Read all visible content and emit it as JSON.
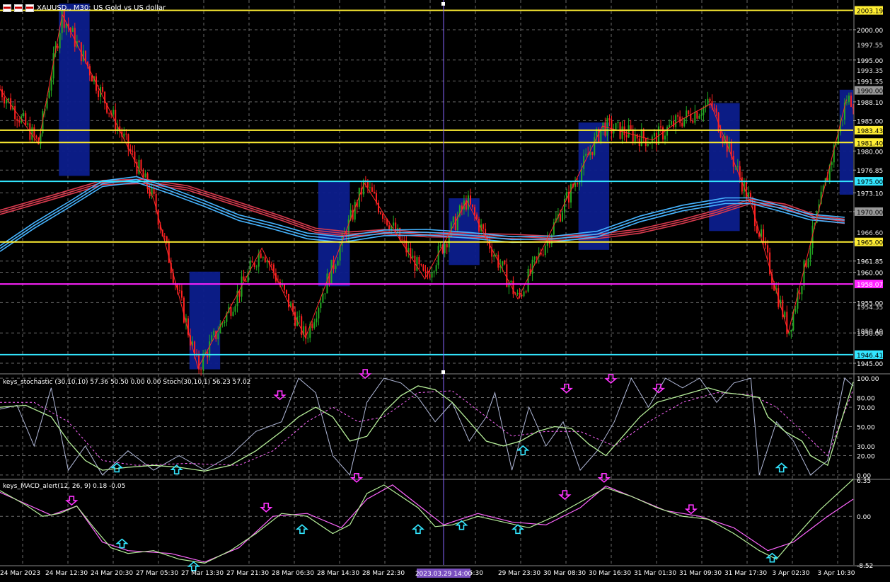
{
  "symbol_header": {
    "text": "XAUUSD., M30:  US Gold vs US dollar"
  },
  "indicators": {
    "stoch_title": "keys_stochastic (30,10,10) 57.36 50.50 0.00 0.00 Stoch(30,10,1) 56.23 57.02",
    "macd_title": "keys_MACD_alert(12, 26, 9) 0.18 -0.05"
  },
  "colors": {
    "background": "#000000",
    "grid": "#6a6a6a",
    "bull": "#22aa22",
    "bear": "#ff2020",
    "zigzag": "#ff2a2a",
    "box": "#0c1d8c",
    "ma_red": "#d83a4e",
    "ma_blue": "#46b4ff",
    "yellow_line": "#ffee33",
    "cyan_line": "#33e6ff",
    "magenta_line": "#ff22ff",
    "crosshair": "#8866ff",
    "stoch_main": "#b0b8d8",
    "stoch_signal": "#b7f09a",
    "stoch_dash": "#ff66ff",
    "macd_line": "#b7f09a",
    "macd_signal": "#ff66ff",
    "arrow_down": "#ff33ff",
    "arrow_up": "#33e6ff"
  },
  "chart_data": [
    {
      "type": "candlestick",
      "title": "XAUUSD., M30:  US Gold vs US dollar",
      "ylim": [
        1943.6,
        2004.9
      ],
      "price_ticks": [
        "2000.00",
        "1995.00",
        "1991.55",
        "1988.10",
        "1985.00",
        "1980.00",
        "1976.85",
        "1973.10",
        "1970.00",
        "1965.00",
        "1961.85",
        "1960.00",
        "1955.00",
        "1950.00",
        "1945.00"
      ],
      "hidden_ticks": [
        "1997.55",
        "1993.35",
        "1983.25",
        "1966.60",
        "1954.35",
        "1950.40"
      ],
      "price_labels": [
        {
          "text": "2003.19",
          "value": 2003.19,
          "kind": "yellow"
        },
        {
          "text": "1983.43",
          "value": 1983.43,
          "kind": "yellow"
        },
        {
          "text": "1981.40",
          "value": 1981.4,
          "kind": "yellow"
        },
        {
          "text": "1975.00",
          "value": 1975.0,
          "kind": "cyan"
        },
        {
          "text": "1965.00",
          "value": 1965.0,
          "kind": "yellow"
        },
        {
          "text": "1958.07",
          "value": 1958.07,
          "kind": "magenta"
        },
        {
          "text": "1946.41",
          "value": 1946.41,
          "kind": "cyan"
        },
        {
          "text": "1990.00",
          "value": 1990.0,
          "kind": "gray"
        },
        {
          "text": "1970.00",
          "value": 1970.0,
          "kind": "gray"
        }
      ],
      "time_labels": [
        "24 Mar 2023",
        "24 Mar 12:30",
        "24 Mar 20:30",
        "27 Mar 05:30",
        "27 Mar 13:30",
        "27 Mar 21:30",
        "28 Mar 06:30",
        "28 Mar 14:30",
        "28 Mar 22:30",
        "29",
        "15:30",
        "29 Mar 23:30",
        "30 Mar 08:30",
        "30 Mar 16:30",
        "31 Mar 01:30",
        "31 Mar 09:30",
        "31 Mar 17:30",
        "3 Apr 02:30",
        "3 Apr 10:30"
      ],
      "crosshair_time": "2023.03.29 14:00",
      "zigzag": [
        {
          "t": 0.0,
          "p": 1990.2
        },
        {
          "t": 0.045,
          "p": 1981.2
        },
        {
          "t": 0.073,
          "p": 2002.5
        },
        {
          "t": 0.18,
          "p": 1972.1
        },
        {
          "t": 0.232,
          "p": 1944.2
        },
        {
          "t": 0.307,
          "p": 1964.0
        },
        {
          "t": 0.358,
          "p": 1949.2
        },
        {
          "t": 0.427,
          "p": 1974.7
        },
        {
          "t": 0.498,
          "p": 1958.9
        },
        {
          "t": 0.547,
          "p": 1971.8
        },
        {
          "t": 0.607,
          "p": 1955.6
        },
        {
          "t": 0.706,
          "p": 1984.1
        },
        {
          "t": 0.765,
          "p": 1981.8
        },
        {
          "t": 0.795,
          "p": 1984.9
        },
        {
          "t": 0.833,
          "p": 1987.8
        },
        {
          "t": 0.882,
          "p": 1970.5
        },
        {
          "t": 0.924,
          "p": 1950.1
        },
        {
          "t": 0.992,
          "p": 1988.5
        }
      ],
      "boxes": [
        {
          "t1": 0.069,
          "t2": 0.105,
          "p1": 2004.3,
          "p2": 1975.9
        },
        {
          "t1": 0.222,
          "t2": 0.258,
          "p1": 1960.1,
          "p2": 1944.0
        },
        {
          "t1": 0.373,
          "t2": 0.41,
          "p1": 1974.9,
          "p2": 1957.7
        },
        {
          "t1": 0.526,
          "t2": 0.562,
          "p1": 1972.2,
          "p2": 1961.2
        },
        {
          "t1": 0.678,
          "t2": 0.714,
          "p1": 1984.7,
          "p2": 1963.7
        },
        {
          "t1": 0.831,
          "t2": 0.867,
          "p1": 1987.9,
          "p2": 1966.8
        },
        {
          "t1": 0.984,
          "t2": 1.0,
          "p1": 1990.1,
          "p2": 1972.8
        }
      ],
      "ma_red_path": [
        [
          0.0,
          1969.9
        ],
        [
          0.06,
          1972.3
        ],
        [
          0.12,
          1974.8
        ],
        [
          0.17,
          1975.0
        ],
        [
          0.22,
          1973.9
        ],
        [
          0.28,
          1971.2
        ],
        [
          0.33,
          1968.9
        ],
        [
          0.37,
          1966.9
        ],
        [
          0.41,
          1966.3
        ],
        [
          0.45,
          1966.7
        ],
        [
          0.5,
          1966.2
        ],
        [
          0.55,
          1966.1
        ],
        [
          0.6,
          1965.9
        ],
        [
          0.65,
          1965.6
        ],
        [
          0.7,
          1965.9
        ],
        [
          0.75,
          1966.8
        ],
        [
          0.8,
          1968.4
        ],
        [
          0.84,
          1969.9
        ],
        [
          0.88,
          1971.7
        ],
        [
          0.92,
          1970.9
        ],
        [
          0.96,
          1968.9
        ],
        [
          0.99,
          1968.4
        ]
      ],
      "ma_blue_path": [
        [
          0.0,
          1963.9
        ],
        [
          0.04,
          1967.7
        ],
        [
          0.08,
          1971.1
        ],
        [
          0.12,
          1974.6
        ],
        [
          0.16,
          1975.3
        ],
        [
          0.2,
          1973.4
        ],
        [
          0.24,
          1971.3
        ],
        [
          0.28,
          1969.0
        ],
        [
          0.32,
          1967.6
        ],
        [
          0.36,
          1966.0
        ],
        [
          0.4,
          1965.4
        ],
        [
          0.45,
          1966.5
        ],
        [
          0.5,
          1966.6
        ],
        [
          0.55,
          1966.1
        ],
        [
          0.6,
          1965.4
        ],
        [
          0.65,
          1965.5
        ],
        [
          0.7,
          1966.3
        ],
        [
          0.75,
          1968.8
        ],
        [
          0.8,
          1970.6
        ],
        [
          0.85,
          1971.8
        ],
        [
          0.88,
          1971.8
        ],
        [
          0.91,
          1970.7
        ],
        [
          0.95,
          1969.1
        ],
        [
          0.99,
          1968.6
        ]
      ]
    },
    {
      "type": "line",
      "title": "keys_stochastic (30,10,10) 57.36 50.50 0.00 0.00 Stoch(30,10,1) 56.23 57.02",
      "ylim": [
        -3,
        103
      ],
      "ticks": [
        "100.00",
        "80.00",
        "70.00",
        "50.00",
        "30.00",
        "20.00",
        "0.00"
      ],
      "signal_path": [
        [
          0.0,
          70
        ],
        [
          0.03,
          72
        ],
        [
          0.06,
          60
        ],
        [
          0.08,
          35
        ],
        [
          0.1,
          15
        ],
        [
          0.12,
          5
        ],
        [
          0.15,
          8
        ],
        [
          0.18,
          10
        ],
        [
          0.21,
          8
        ],
        [
          0.24,
          4
        ],
        [
          0.27,
          10
        ],
        [
          0.3,
          25
        ],
        [
          0.33,
          45
        ],
        [
          0.35,
          60
        ],
        [
          0.37,
          70
        ],
        [
          0.39,
          60
        ],
        [
          0.41,
          35
        ],
        [
          0.43,
          40
        ],
        [
          0.45,
          65
        ],
        [
          0.47,
          82
        ],
        [
          0.49,
          92
        ],
        [
          0.51,
          88
        ],
        [
          0.53,
          75
        ],
        [
          0.55,
          55
        ],
        [
          0.57,
          35
        ],
        [
          0.59,
          30
        ],
        [
          0.61,
          35
        ],
        [
          0.63,
          45
        ],
        [
          0.65,
          50
        ],
        [
          0.67,
          48
        ],
        [
          0.69,
          32
        ],
        [
          0.71,
          20
        ],
        [
          0.73,
          40
        ],
        [
          0.75,
          60
        ],
        [
          0.77,
          75
        ],
        [
          0.79,
          80
        ],
        [
          0.81,
          85
        ],
        [
          0.83,
          90
        ],
        [
          0.85,
          85
        ],
        [
          0.87,
          83
        ],
        [
          0.89,
          80
        ],
        [
          0.9,
          60
        ],
        [
          0.92,
          45
        ],
        [
          0.94,
          35
        ],
        [
          0.95,
          20
        ],
        [
          0.97,
          10
        ],
        [
          1.0,
          96
        ]
      ],
      "dash_path": [
        [
          0.0,
          75
        ],
        [
          0.04,
          75
        ],
        [
          0.08,
          55
        ],
        [
          0.12,
          15
        ],
        [
          0.16,
          10
        ],
        [
          0.22,
          12
        ],
        [
          0.28,
          10
        ],
        [
          0.32,
          25
        ],
        [
          0.36,
          55
        ],
        [
          0.39,
          70
        ],
        [
          0.42,
          55
        ],
        [
          0.45,
          60
        ],
        [
          0.49,
          85
        ],
        [
          0.53,
          87
        ],
        [
          0.57,
          60
        ],
        [
          0.6,
          40
        ],
        [
          0.64,
          45
        ],
        [
          0.68,
          45
        ],
        [
          0.72,
          30
        ],
        [
          0.76,
          55
        ],
        [
          0.8,
          75
        ],
        [
          0.84,
          85
        ],
        [
          0.88,
          83
        ],
        [
          0.91,
          70
        ],
        [
          0.94,
          45
        ],
        [
          0.97,
          20
        ],
        [
          1.0,
          88
        ]
      ],
      "main_path": [
        [
          0.0,
          68
        ],
        [
          0.02,
          72
        ],
        [
          0.04,
          30
        ],
        [
          0.06,
          90
        ],
        [
          0.08,
          5
        ],
        [
          0.1,
          30
        ],
        [
          0.12,
          0
        ],
        [
          0.15,
          25
        ],
        [
          0.18,
          5
        ],
        [
          0.21,
          20
        ],
        [
          0.24,
          5
        ],
        [
          0.27,
          20
        ],
        [
          0.3,
          45
        ],
        [
          0.33,
          55
        ],
        [
          0.35,
          100
        ],
        [
          0.37,
          85
        ],
        [
          0.39,
          20
        ],
        [
          0.41,
          0
        ],
        [
          0.43,
          75
        ],
        [
          0.45,
          100
        ],
        [
          0.47,
          95
        ],
        [
          0.49,
          80
        ],
        [
          0.51,
          55
        ],
        [
          0.53,
          75
        ],
        [
          0.55,
          35
        ],
        [
          0.57,
          60
        ],
        [
          0.58,
          85
        ],
        [
          0.6,
          5
        ],
        [
          0.62,
          70
        ],
        [
          0.64,
          30
        ],
        [
          0.66,
          55
        ],
        [
          0.68,
          5
        ],
        [
          0.7,
          25
        ],
        [
          0.72,
          55
        ],
        [
          0.74,
          100
        ],
        [
          0.76,
          70
        ],
        [
          0.78,
          100
        ],
        [
          0.8,
          90
        ],
        [
          0.82,
          100
        ],
        [
          0.84,
          75
        ],
        [
          0.86,
          95
        ],
        [
          0.88,
          100
        ],
        [
          0.89,
          0
        ],
        [
          0.91,
          55
        ],
        [
          0.93,
          35
        ],
        [
          0.95,
          0
        ],
        [
          0.97,
          15
        ],
        [
          0.99,
          100
        ],
        [
          1.0,
          92
        ]
      ],
      "arrows_down": [
        [
          0.428,
          100
        ],
        [
          0.328,
          78
        ],
        [
          0.664,
          85
        ],
        [
          0.716,
          95
        ],
        [
          0.772,
          85
        ]
      ],
      "arrows_up": [
        [
          0.137,
          12
        ],
        [
          0.207,
          10
        ],
        [
          0.613,
          30
        ],
        [
          0.916,
          12
        ]
      ]
    },
    {
      "type": "line",
      "title": "keys_MACD_alert(12, 26, 9) 0.18 -0.05",
      "ylim": [
        -8.52,
        6.35
      ],
      "ticks": [
        "6.35",
        "0.00",
        "-8.52"
      ],
      "macd_path": [
        [
          0.0,
          4.5
        ],
        [
          0.03,
          2.0
        ],
        [
          0.05,
          0.0
        ],
        [
          0.07,
          0.5
        ],
        [
          0.09,
          1.8
        ],
        [
          0.11,
          -2.0
        ],
        [
          0.13,
          -5.5
        ],
        [
          0.15,
          -6.5
        ],
        [
          0.18,
          -6.0
        ],
        [
          0.21,
          -7.5
        ],
        [
          0.24,
          -8.2
        ],
        [
          0.27,
          -6.0
        ],
        [
          0.3,
          -3.0
        ],
        [
          0.33,
          0.5
        ],
        [
          0.36,
          0.0
        ],
        [
          0.39,
          -3.0
        ],
        [
          0.41,
          -1.5
        ],
        [
          0.43,
          4.0
        ],
        [
          0.45,
          5.5
        ],
        [
          0.47,
          3.5
        ],
        [
          0.49,
          1.5
        ],
        [
          0.51,
          -1.8
        ],
        [
          0.53,
          -1.5
        ],
        [
          0.56,
          0.0
        ],
        [
          0.59,
          -1.0
        ],
        [
          0.62,
          -2.0
        ],
        [
          0.65,
          0.0
        ],
        [
          0.68,
          2.5
        ],
        [
          0.71,
          5.0
        ],
        [
          0.74,
          3.5
        ],
        [
          0.77,
          1.5
        ],
        [
          0.8,
          0.0
        ],
        [
          0.83,
          -0.5
        ],
        [
          0.86,
          -3.0
        ],
        [
          0.89,
          -6.0
        ],
        [
          0.91,
          -7.5
        ],
        [
          0.93,
          -4.0
        ],
        [
          0.96,
          1.0
        ],
        [
          1.0,
          6.5
        ]
      ],
      "signal_path": [
        [
          0.0,
          4.2
        ],
        [
          0.03,
          2.2
        ],
        [
          0.06,
          0.2
        ],
        [
          0.09,
          1.8
        ],
        [
          0.12,
          -4.5
        ],
        [
          0.15,
          -6.0
        ],
        [
          0.2,
          -6.5
        ],
        [
          0.24,
          -8.0
        ],
        [
          0.28,
          -5.5
        ],
        [
          0.32,
          0.0
        ],
        [
          0.36,
          0.5
        ],
        [
          0.4,
          -2.0
        ],
        [
          0.43,
          3.0
        ],
        [
          0.46,
          5.5
        ],
        [
          0.49,
          2.0
        ],
        [
          0.52,
          -1.5
        ],
        [
          0.56,
          0.5
        ],
        [
          0.6,
          -1.0
        ],
        [
          0.64,
          -1.5
        ],
        [
          0.68,
          1.5
        ],
        [
          0.71,
          5.3
        ],
        [
          0.74,
          3.5
        ],
        [
          0.78,
          1.0
        ],
        [
          0.82,
          0.0
        ],
        [
          0.86,
          -2.0
        ],
        [
          0.9,
          -6.0
        ],
        [
          0.93,
          -4.5
        ],
        [
          0.97,
          0.0
        ],
        [
          1.0,
          3.0
        ]
      ],
      "arrows_down": [
        [
          0.084,
          2.0
        ],
        [
          0.312,
          0.8
        ],
        [
          0.418,
          6.0
        ],
        [
          0.662,
          3.0
        ],
        [
          0.708,
          6.0
        ],
        [
          0.81,
          0.5
        ]
      ],
      "arrows_up": [
        [
          0.143,
          -4.0
        ],
        [
          0.227,
          -8.0
        ],
        [
          0.354,
          -1.5
        ],
        [
          0.49,
          -1.5
        ],
        [
          0.541,
          -0.8
        ],
        [
          0.607,
          -1.5
        ],
        [
          0.905,
          -6.5
        ]
      ]
    }
  ]
}
